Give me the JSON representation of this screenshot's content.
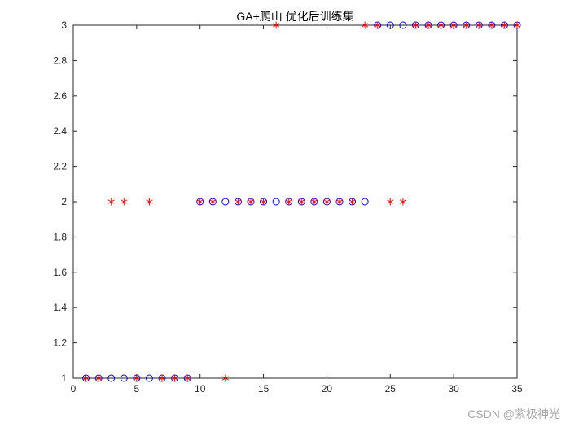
{
  "watermark": {
    "text": "CSDN @紫极神光"
  },
  "chart_data": {
    "type": "scatter",
    "title": "GA+爬山 优化后训练集",
    "xlabel": "",
    "ylabel": "",
    "xlim": [
      0,
      35
    ],
    "ylim": [
      1,
      3
    ],
    "xticks": [
      0,
      5,
      10,
      15,
      20,
      25,
      30,
      35
    ],
    "yticks": [
      1,
      1.2,
      1.4,
      1.6,
      1.8,
      2,
      2.2,
      2.4,
      2.6,
      2.8,
      3
    ],
    "grid": false,
    "box": true,
    "axis_color": "#262626",
    "series": [
      {
        "name": "predicted-class",
        "marker": "circle",
        "color": "#0000ff",
        "points": [
          [
            1,
            1
          ],
          [
            2,
            1
          ],
          [
            3,
            1
          ],
          [
            4,
            1
          ],
          [
            5,
            1
          ],
          [
            6,
            1
          ],
          [
            7,
            1
          ],
          [
            8,
            1
          ],
          [
            9,
            1
          ],
          [
            10,
            2
          ],
          [
            11,
            2
          ],
          [
            12,
            2
          ],
          [
            13,
            2
          ],
          [
            14,
            2
          ],
          [
            15,
            2
          ],
          [
            16,
            2
          ],
          [
            17,
            2
          ],
          [
            18,
            2
          ],
          [
            19,
            2
          ],
          [
            20,
            2
          ],
          [
            21,
            2
          ],
          [
            22,
            2
          ],
          [
            23,
            2
          ],
          [
            24,
            3
          ],
          [
            25,
            3
          ],
          [
            26,
            3
          ],
          [
            27,
            3
          ],
          [
            28,
            3
          ],
          [
            29,
            3
          ],
          [
            30,
            3
          ],
          [
            31,
            3
          ],
          [
            32,
            3
          ],
          [
            33,
            3
          ],
          [
            34,
            3
          ],
          [
            35,
            3
          ]
        ]
      },
      {
        "name": "actual-class",
        "marker": "asterisk",
        "color": "#ff0000",
        "points": [
          [
            1,
            1
          ],
          [
            2,
            1
          ],
          [
            5,
            1
          ],
          [
            7,
            1
          ],
          [
            8,
            1
          ],
          [
            9,
            1
          ],
          [
            12,
            1
          ],
          [
            3,
            2
          ],
          [
            4,
            2
          ],
          [
            6,
            2
          ],
          [
            10,
            2
          ],
          [
            11,
            2
          ],
          [
            13,
            2
          ],
          [
            14,
            2
          ],
          [
            15,
            2
          ],
          [
            17,
            2
          ],
          [
            18,
            2
          ],
          [
            19,
            2
          ],
          [
            20,
            2
          ],
          [
            21,
            2
          ],
          [
            22,
            2
          ],
          [
            25,
            2
          ],
          [
            26,
            2
          ],
          [
            16,
            3
          ],
          [
            23,
            3
          ],
          [
            24,
            3
          ],
          [
            27,
            3
          ],
          [
            28,
            3
          ],
          [
            29,
            3
          ],
          [
            30,
            3
          ],
          [
            31,
            3
          ],
          [
            32,
            3
          ],
          [
            33,
            3
          ],
          [
            34,
            3
          ],
          [
            35,
            3
          ]
        ]
      }
    ]
  }
}
